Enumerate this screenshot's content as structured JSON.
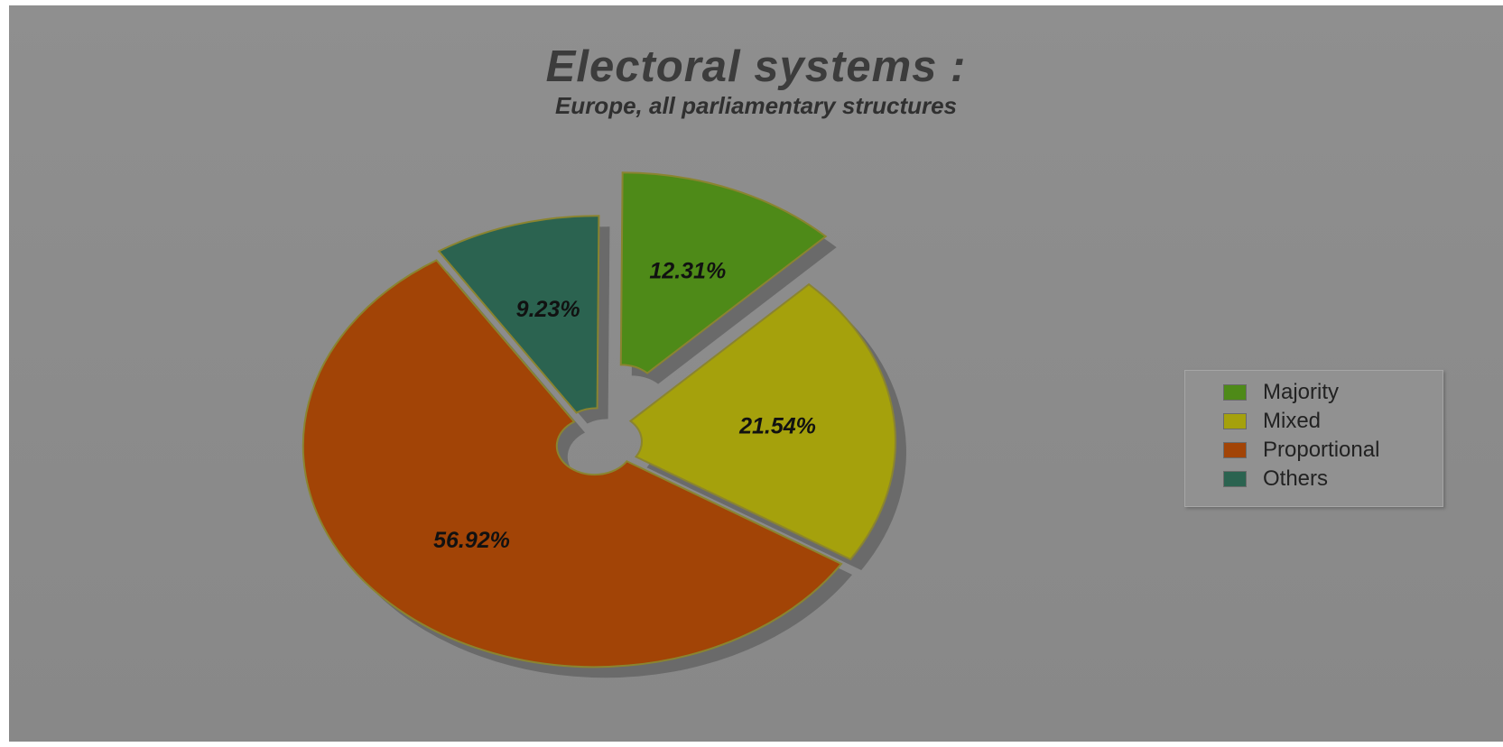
{
  "chart_data": {
    "type": "pie",
    "title": "Electoral systems :",
    "subtitle": "Europe, all parliamentary structures",
    "slices": [
      {
        "name": "Majority",
        "value": 12.31,
        "label": "12.31%",
        "color": "#4e8a18",
        "exploded": true
      },
      {
        "name": "Mixed",
        "value": 21.54,
        "label": "21.54%",
        "color": "#a5a10c"
      },
      {
        "name": "Proportional",
        "value": 56.92,
        "label": "56.92%",
        "color": "#a24406"
      },
      {
        "name": "Others",
        "value": 9.23,
        "label": "9.23%",
        "color": "#2b6350"
      }
    ],
    "legend_position": "right",
    "donut_hole": true
  }
}
